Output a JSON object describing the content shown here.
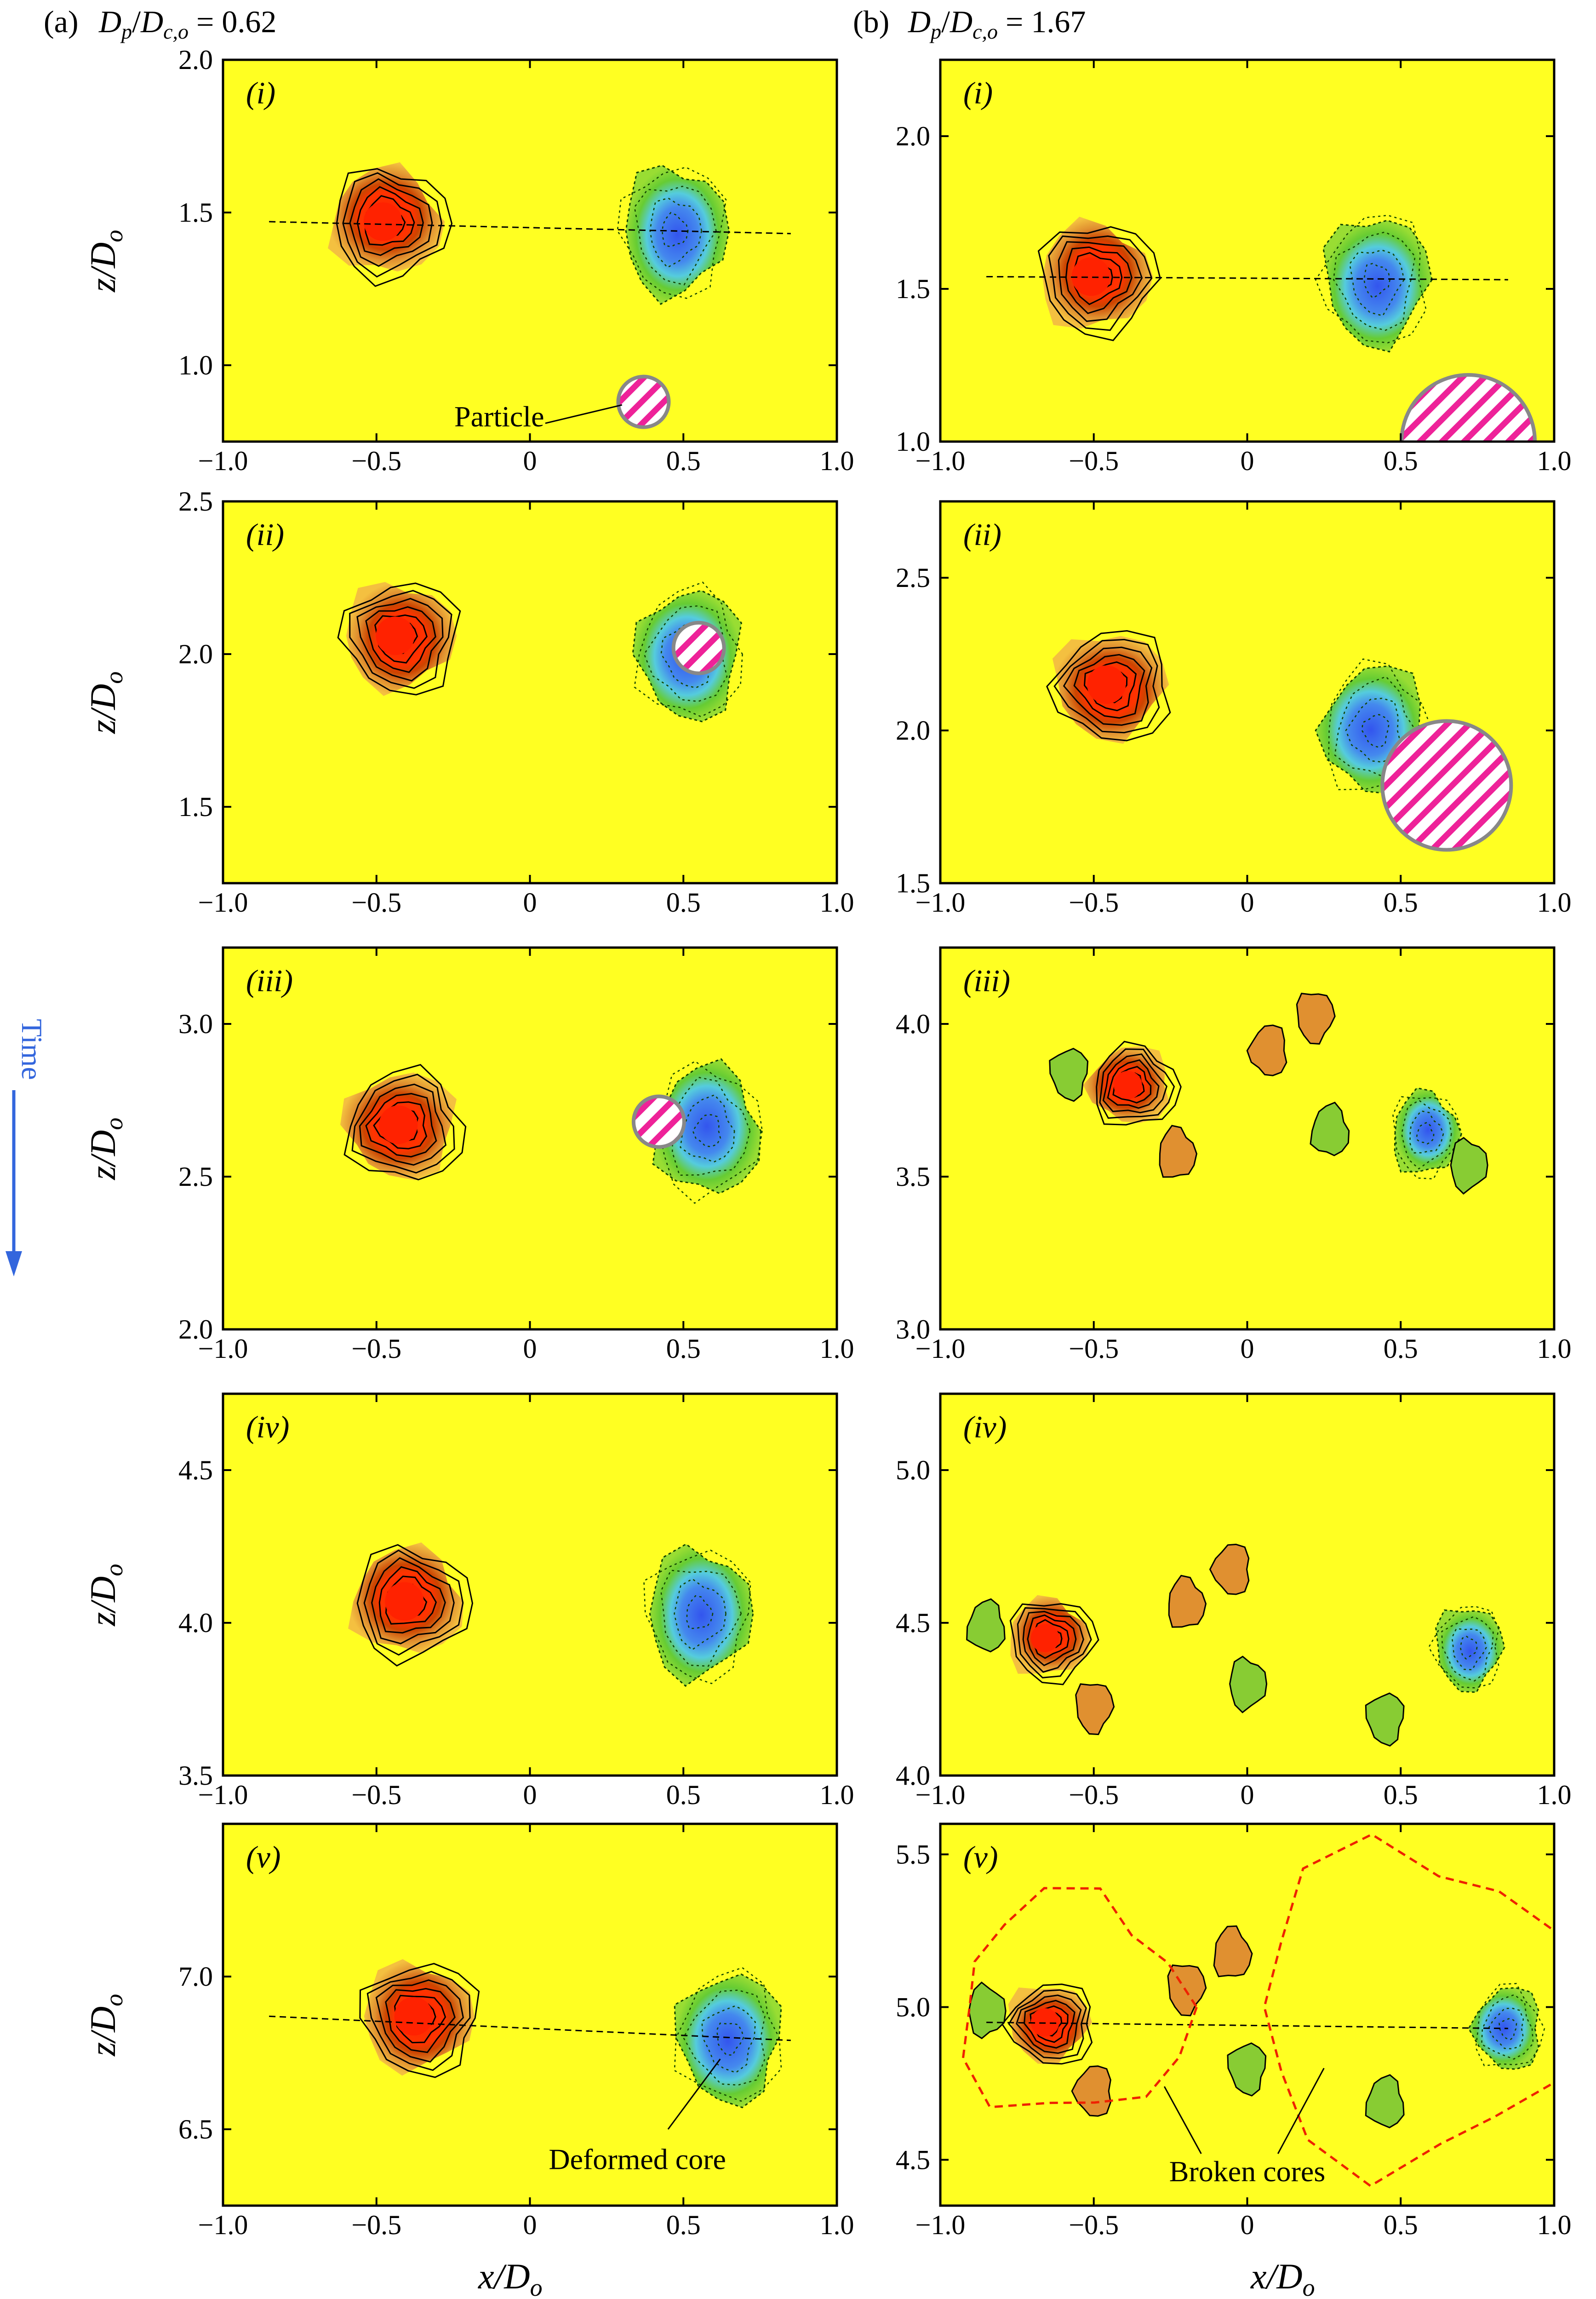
{
  "figure": {
    "columns": [
      {
        "tag": "(a)",
        "label_html": "D_p/D_c,o = 0.62",
        "prefix": "D",
        "sub_p": "p",
        "slash": "/",
        "prefix2": "D",
        "sub_co": "c,o",
        "value": " = 0.62"
      },
      {
        "tag": "(b)",
        "label_html": "D_p/D_c,o = 1.67",
        "prefix": "D",
        "sub_p": "p",
        "slash": "/",
        "prefix2": "D",
        "sub_co": "c,o",
        "value": " = 1.67"
      }
    ],
    "y_axis_title": {
      "main": "z/D",
      "sub": "o"
    },
    "x_axis_title": {
      "main": "x/D",
      "sub": "o"
    },
    "time_label": "Time",
    "annotations": {
      "particle": "Particle",
      "deformed_core": "Deformed core",
      "broken_cores": "Broken cores"
    },
    "colors": {
      "background": "#ffff22",
      "positive_core": "#ff2200",
      "positive_contour": "#000000",
      "negative_core": "#3355ee",
      "negative_fill": "#66cc33",
      "particle_hatch": "#ee2299",
      "dashed_line": "#000000",
      "red_dashed": "#ee2200",
      "time_arrow": "#3366dd"
    }
  },
  "chart_data": [
    {
      "type": "contour",
      "column": "a",
      "panel": "(i)",
      "xlim": [
        -1.0,
        1.0
      ],
      "ylim": [
        0.75,
        2.0
      ],
      "xticks": [
        "−1.0",
        "−0.5",
        "0",
        "0.5",
        "1.0"
      ],
      "yticks": [
        "1.0",
        "1.5",
        "2.0"
      ],
      "ytick_values": [
        1.0,
        1.5,
        2.0
      ],
      "positive_core": [
        -0.47,
        1.47
      ],
      "negative_core": [
        0.47,
        1.44
      ],
      "particle": [
        0.37,
        0.88
      ]
    },
    {
      "type": "contour",
      "column": "b",
      "panel": "(i)",
      "xlim": [
        -1.0,
        1.0
      ],
      "ylim": [
        1.0,
        2.25
      ],
      "xticks": [
        "−1.0",
        "−0.5",
        "0",
        "0.5",
        "1.0"
      ],
      "yticks": [
        "1.0",
        "1.5",
        "2.0"
      ],
      "ytick_values": [
        1.0,
        1.5,
        2.0
      ],
      "positive_core": [
        -0.5,
        1.54
      ],
      "negative_core": [
        0.42,
        1.53
      ],
      "particle": [
        0.72,
        1.0
      ]
    },
    {
      "type": "contour",
      "column": "a",
      "panel": "(ii)",
      "xlim": [
        -1.0,
        1.0
      ],
      "ylim": [
        1.25,
        2.5
      ],
      "xticks": [
        "−1.0",
        "−0.5",
        "0",
        "0.5",
        "1.0"
      ],
      "yticks": [
        "1.5",
        "2.0",
        "2.5"
      ],
      "ytick_values": [
        1.5,
        2.0,
        2.5
      ],
      "positive_core": [
        -0.43,
        2.06
      ],
      "negative_core": [
        0.52,
        2.0
      ],
      "particle": [
        0.55,
        2.02
      ]
    },
    {
      "type": "contour",
      "column": "b",
      "panel": "(ii)",
      "xlim": [
        -1.0,
        1.0
      ],
      "ylim": [
        1.5,
        2.75
      ],
      "xticks": [
        "−1.0",
        "−0.5",
        "0",
        "0.5",
        "1.0"
      ],
      "yticks": [
        "1.5",
        "2.0",
        "2.5"
      ],
      "ytick_values": [
        1.5,
        2.0,
        2.5
      ],
      "positive_core": [
        -0.45,
        2.15
      ],
      "negative_core": [
        0.42,
        2.0
      ],
      "particle": [
        0.65,
        1.82
      ]
    },
    {
      "type": "contour",
      "column": "a",
      "panel": "(iii)",
      "xlim": [
        -1.0,
        1.0
      ],
      "ylim": [
        2.0,
        3.25
      ],
      "xticks": [
        "−1.0",
        "−0.5",
        "0",
        "0.5",
        "1.0"
      ],
      "yticks": [
        "2.0",
        "2.5",
        "3.0"
      ],
      "ytick_values": [
        2.0,
        2.5,
        3.0
      ],
      "positive_core": [
        -0.42,
        2.67
      ],
      "negative_core": [
        0.58,
        2.65
      ],
      "particle": [
        0.42,
        2.68
      ]
    },
    {
      "type": "contour",
      "column": "b",
      "panel": "(iii)",
      "xlim": [
        -1.0,
        1.0
      ],
      "ylim": [
        3.0,
        4.25
      ],
      "xticks": [
        "−1.0",
        "−0.5",
        "0",
        "0.5",
        "1.0"
      ],
      "yticks": [
        "3.0",
        "3.5",
        "4.0"
      ],
      "ytick_values": [
        3.0,
        3.5,
        4.0
      ],
      "positive_core": [
        -0.38,
        3.8
      ],
      "negative_core": [
        0.58,
        3.64
      ]
    },
    {
      "type": "contour",
      "column": "a",
      "panel": "(iv)",
      "xlim": [
        -1.0,
        1.0
      ],
      "ylim": [
        3.5,
        4.75
      ],
      "xticks": [
        "−1.0",
        "−0.5",
        "0",
        "0.5",
        "1.0"
      ],
      "yticks": [
        "3.5",
        "4.0",
        "4.5"
      ],
      "ytick_values": [
        3.5,
        4.0,
        4.5
      ],
      "positive_core": [
        -0.4,
        4.07
      ],
      "negative_core": [
        0.55,
        4.03
      ]
    },
    {
      "type": "contour",
      "column": "b",
      "panel": "(iv)",
      "xlim": [
        -1.0,
        1.0
      ],
      "ylim": [
        4.0,
        5.25
      ],
      "xticks": [
        "−1.0",
        "−0.5",
        "0",
        "0.5",
        "1.0"
      ],
      "yticks": [
        "4.0",
        "4.5",
        "5.0"
      ],
      "ytick_values": [
        4.0,
        4.5,
        5.0
      ],
      "positive_core": [
        -0.65,
        4.45
      ],
      "negative_core": [
        0.72,
        4.42
      ]
    },
    {
      "type": "contour",
      "column": "a",
      "panel": "(v)",
      "xlim": [
        -1.0,
        1.0
      ],
      "ylim": [
        6.25,
        7.5
      ],
      "xticks": [
        "−1.0",
        "−0.5",
        "0",
        "0.5",
        "1.0"
      ],
      "yticks": [
        "6.5",
        "7.0"
      ],
      "ytick_values": [
        6.5,
        7.0
      ],
      "positive_core": [
        -0.37,
        6.87
      ],
      "negative_core": [
        0.65,
        6.8
      ]
    },
    {
      "type": "contour",
      "column": "b",
      "panel": "(v)",
      "xlim": [
        -1.0,
        1.0
      ],
      "ylim": [
        4.35,
        5.6
      ],
      "xticks": [
        "−1.0",
        "−0.5",
        "0",
        "0.5",
        "1.0"
      ],
      "yticks": [
        "4.5",
        "5.0",
        "5.5"
      ],
      "ytick_values": [
        4.5,
        5.0,
        5.5
      ],
      "positive_core": [
        -0.65,
        4.95
      ],
      "negative_core": [
        0.85,
        4.93
      ]
    }
  ]
}
